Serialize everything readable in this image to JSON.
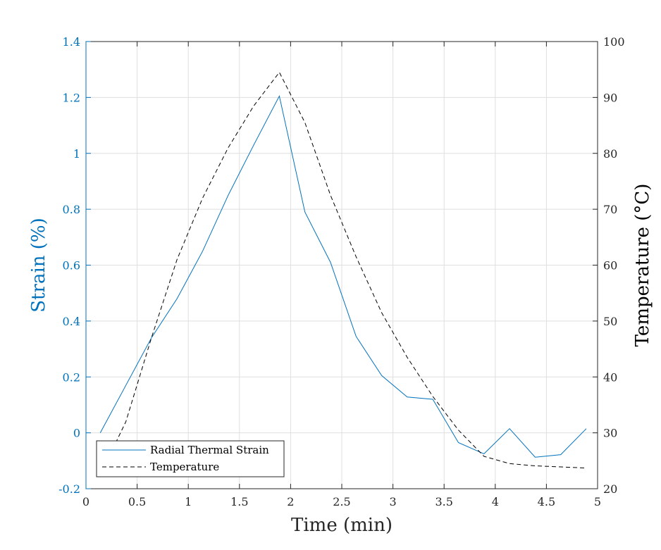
{
  "chart_data": {
    "type": "line",
    "xlabel": "Time (min)",
    "ylabel_left": "Strain (%)",
    "ylabel_right": "Temperature (°C)",
    "xlim": [
      0,
      5
    ],
    "ylim_left": [
      -0.2,
      1.4
    ],
    "ylim_right": [
      20,
      100
    ],
    "x_ticks": [
      "0",
      "0.5",
      "1",
      "1.5",
      "2",
      "2.5",
      "3",
      "3.5",
      "4",
      "4.5",
      "5"
    ],
    "y_left_ticks": [
      "-0.2",
      "0",
      "0.2",
      "0.4",
      "0.6",
      "0.8",
      "1",
      "1.2",
      "1.4"
    ],
    "y_right_ticks": [
      "20",
      "30",
      "40",
      "50",
      "60",
      "70",
      "80",
      "90",
      "100"
    ],
    "grid": true,
    "legend_position": "bottom-left",
    "series": [
      {
        "name": "Radial Thermal Strain",
        "axis": "left",
        "color": "#0072bd",
        "style": "solid",
        "x": [
          0.14,
          0.39,
          0.64,
          0.89,
          1.14,
          1.39,
          1.64,
          1.89,
          2.14,
          2.39,
          2.64,
          2.89,
          3.14,
          3.39,
          3.64,
          3.89,
          4.14,
          4.39,
          4.64,
          4.89
        ],
        "y": [
          0.0,
          0.17,
          0.34,
          0.48,
          0.65,
          0.85,
          1.03,
          1.205,
          0.79,
          0.61,
          0.345,
          0.205,
          0.128,
          0.12,
          -0.035,
          -0.075,
          0.015,
          -0.087,
          -0.078,
          0.015
        ]
      },
      {
        "name": "Temperature",
        "axis": "right",
        "color": "#000000",
        "style": "dashed",
        "x": [
          0.14,
          0.39,
          0.64,
          0.89,
          1.14,
          1.39,
          1.64,
          1.89,
          2.14,
          2.39,
          2.64,
          2.89,
          3.14,
          3.39,
          3.64,
          3.89,
          4.14,
          4.39,
          4.64,
          4.89
        ],
        "y": [
          22.5,
          32,
          47,
          61,
          72,
          81,
          88.5,
          94.5,
          85.5,
          72.5,
          61.5,
          51.5,
          43.5,
          36.5,
          30.5,
          25.8,
          24.5,
          24.1,
          23.9,
          23.7
        ]
      }
    ]
  }
}
